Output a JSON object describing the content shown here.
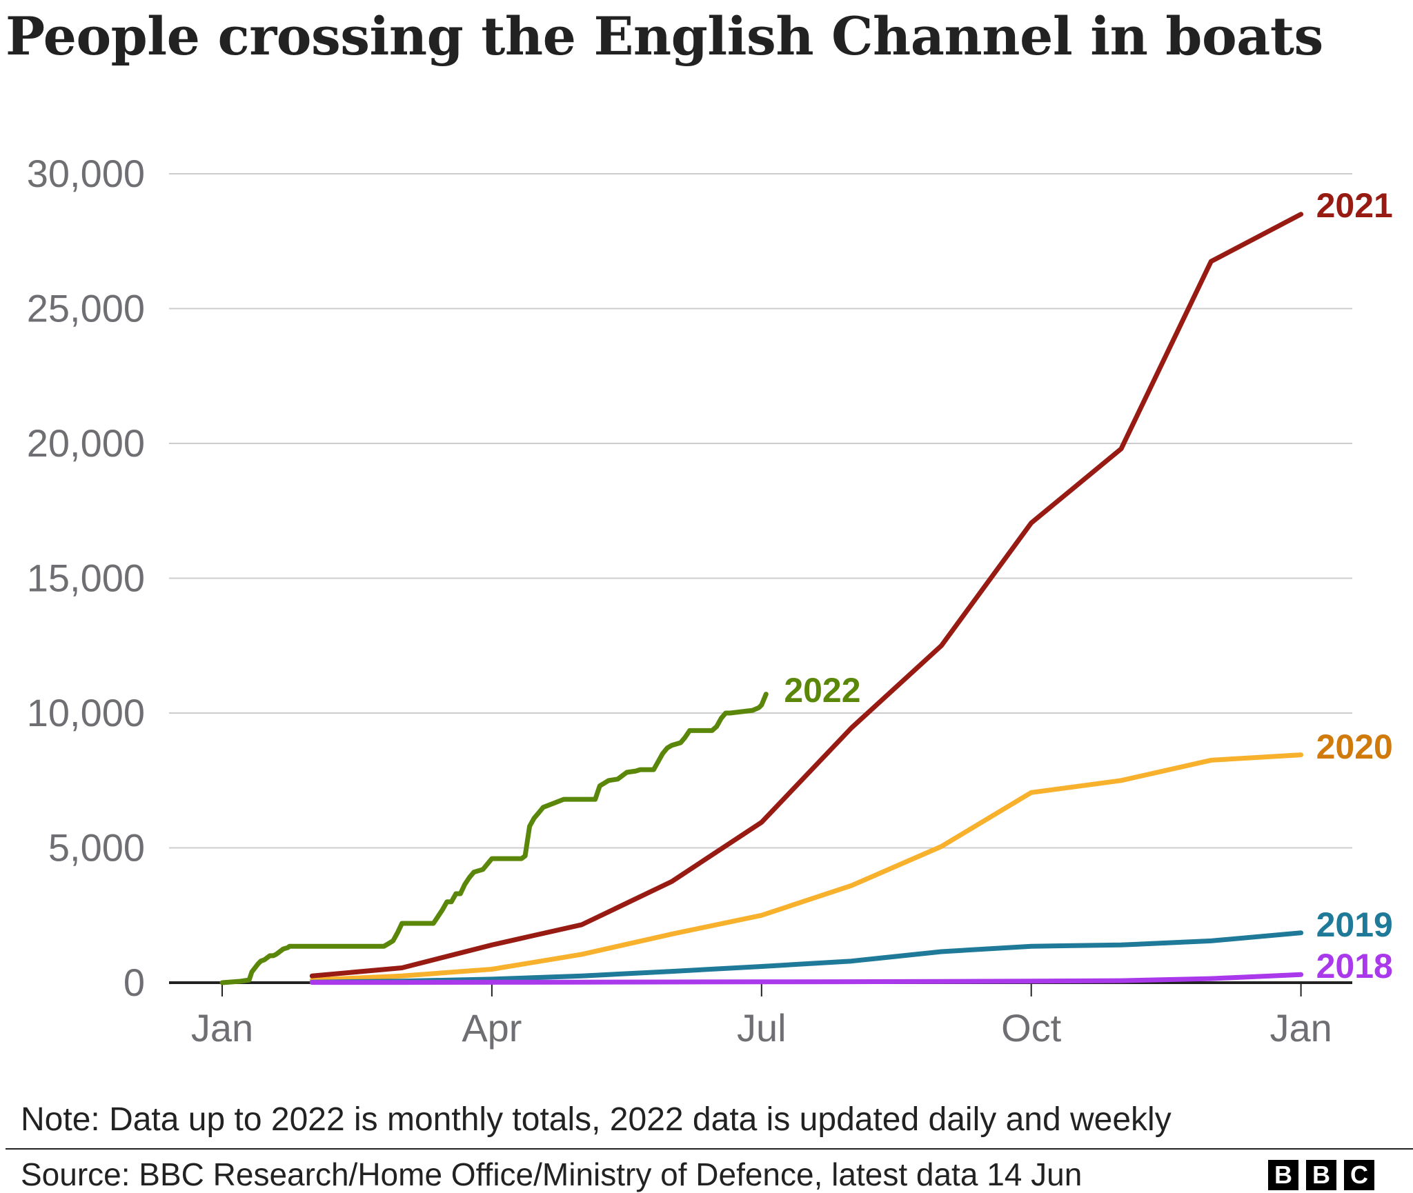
{
  "title": "People crossing the English Channel in boats",
  "note": "Note: Data up to 2022 is monthly totals, 2022 data is updated daily and weekly",
  "source": "Source: BBC Research/Home Office/Ministry of Defence, latest data 14 Jun",
  "logo": [
    "B",
    "B",
    "C"
  ],
  "chart_data": {
    "type": "line",
    "title": "People crossing the English Channel in boats",
    "xlabel": "",
    "ylabel": "",
    "ylim": [
      0,
      30000
    ],
    "xlim": [
      0,
      12.2
    ],
    "grid": true,
    "legend": "direct labels at line ends",
    "y_ticks": [
      0,
      5000,
      10000,
      15000,
      20000,
      25000,
      30000
    ],
    "y_tick_labels": [
      "0",
      "5,000",
      "10,000",
      "15,000",
      "20,000",
      "25,000",
      "30,000"
    ],
    "x_ticks": [
      0,
      3,
      6,
      9,
      12
    ],
    "x_tick_labels": [
      "Jan",
      "Apr",
      "Jul",
      "Oct",
      "Jan"
    ],
    "x_unit": "months since 1 Jan",
    "series": [
      {
        "name": "2018",
        "color": "#a939eb",
        "x": [
          1,
          2,
          3,
          4,
          5,
          6,
          7,
          8,
          9,
          10,
          11,
          12
        ],
        "y": [
          10,
          10,
          15,
          20,
          25,
          30,
          35,
          45,
          55,
          75,
          150,
          300
        ]
      },
      {
        "name": "2019",
        "color": "#1f7a9a",
        "x": [
          1,
          2,
          3,
          4,
          5,
          6,
          7,
          8,
          9,
          10,
          11,
          12
        ],
        "y": [
          20,
          60,
          130,
          250,
          420,
          600,
          800,
          1150,
          1350,
          1400,
          1550,
          1850
        ]
      },
      {
        "name": "2020",
        "color": "#f8b12c",
        "x": [
          1,
          2,
          3,
          4,
          5,
          6,
          7,
          8,
          9,
          10,
          11,
          12
        ],
        "y": [
          100,
          250,
          500,
          1050,
          1800,
          2500,
          3600,
          5050,
          7050,
          7500,
          8250,
          8450
        ]
      },
      {
        "name": "2021",
        "color": "#971b13",
        "x": [
          1,
          2,
          3,
          4,
          5,
          6,
          7,
          8,
          9,
          10,
          11,
          12
        ],
        "y": [
          250,
          550,
          1400,
          2150,
          3750,
          5950,
          9450,
          12500,
          17050,
          19800,
          26750,
          28500
        ]
      },
      {
        "name": "2022",
        "color": "#5a8709",
        "x": [
          0,
          0.2,
          0.3,
          0.33,
          0.4,
          0.43,
          0.47,
          0.53,
          0.57,
          0.6,
          0.62,
          0.68,
          0.73,
          0.75,
          0.77,
          0.82,
          1.0,
          1.3,
          1.6,
          1.8,
          1.85,
          1.9,
          1.95,
          2.0,
          2.1,
          2.35,
          2.45,
          2.5,
          2.55,
          2.6,
          2.65,
          2.7,
          2.75,
          2.8,
          2.9,
          3.0,
          3.2,
          3.33,
          3.37,
          3.42,
          3.47,
          3.52,
          3.57,
          3.8,
          3.9,
          3.95,
          4.0,
          4.15,
          4.2,
          4.3,
          4.4,
          4.5,
          4.6,
          4.65,
          4.7,
          4.8,
          4.9,
          4.95,
          5.0,
          5.1,
          5.15,
          5.2,
          5.3,
          5.45,
          5.5,
          5.55,
          5.6,
          5.65,
          5.9,
          5.97,
          6.0,
          6.05
        ],
        "y": [
          0,
          50,
          100,
          400,
          700,
          800,
          850,
          1000,
          1000,
          1050,
          1100,
          1250,
          1300,
          1350,
          1350,
          1350,
          1350,
          1350,
          1350,
          1350,
          1450,
          1550,
          1850,
          2200,
          2200,
          2200,
          2700,
          3000,
          3000,
          3300,
          3300,
          3650,
          3900,
          4100,
          4200,
          4600,
          4600,
          4600,
          4700,
          5800,
          6100,
          6300,
          6500,
          6800,
          6800,
          6800,
          6800,
          6800,
          7300,
          7500,
          7550,
          7800,
          7850,
          7900,
          7900,
          7900,
          8500,
          8700,
          8800,
          8900,
          9100,
          9350,
          9350,
          9350,
          9500,
          9800,
          10000,
          10000,
          10100,
          10200,
          10300,
          10700
        ]
      }
    ]
  }
}
